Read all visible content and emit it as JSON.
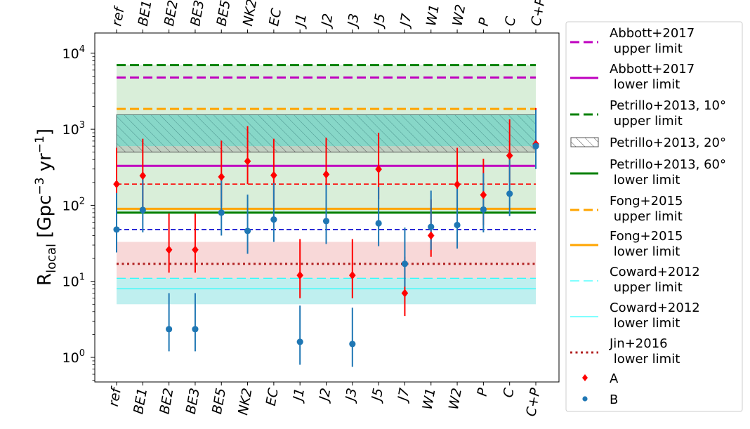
{
  "chart_data": {
    "type": "scatter",
    "title": "",
    "xlabel": "",
    "ylabel": "R",
    "ylabel_sub": "local",
    "ylabel_units_a": " [Gpc",
    "ylabel_units_exp1": "−3",
    "ylabel_units_b": " yr",
    "ylabel_units_exp2": "−1",
    "ylabel_units_c": "]",
    "yscale": "log",
    "ylim": [
      0.5,
      12000
    ],
    "yticks": [
      {
        "base": "10",
        "exp": "0",
        "value": 1
      },
      {
        "base": "10",
        "exp": "1",
        "value": 10
      },
      {
        "base": "10",
        "exp": "2",
        "value": 100
      },
      {
        "base": "10",
        "exp": "3",
        "value": 1000
      },
      {
        "base": "10",
        "exp": "4",
        "value": 10000
      }
    ],
    "categories": [
      "ref",
      "BE1",
      "BE2",
      "BE3",
      "BE5",
      "NK2",
      "EC",
      "J1",
      "J2",
      "J3",
      "J5",
      "J7",
      "W1",
      "W2",
      "P",
      "C",
      "C+P"
    ],
    "series": [
      {
        "name": "A",
        "color": "#ff0000",
        "marker": "diamond",
        "values": [
          190,
          245,
          26,
          26,
          237,
          380,
          248,
          12,
          255,
          12,
          298,
          7,
          40,
          188,
          137,
          450,
          640
        ],
        "err_low": [
          80,
          95,
          13,
          13,
          95,
          190,
          95,
          6,
          100,
          6,
          120,
          3.5,
          21,
          80,
          55,
          200,
          320
        ],
        "err_high": [
          570,
          750,
          78,
          78,
          710,
          1100,
          750,
          36,
          775,
          36,
          900,
          21,
          120,
          570,
          410,
          1350,
          1900
        ]
      },
      {
        "name": "B",
        "color": "#1f77b4",
        "marker": "circle",
        "values": [
          48,
          87,
          2.35,
          2.35,
          80,
          46,
          65,
          1.6,
          62,
          1.5,
          58,
          17,
          52,
          55,
          88,
          142,
          600
        ],
        "err_low": [
          24,
          44,
          1.2,
          1.2,
          40,
          23,
          33,
          0.8,
          31,
          0.75,
          29,
          8.5,
          26,
          27,
          44,
          72,
          300
        ],
        "err_high": [
          145,
          260,
          7,
          7,
          240,
          138,
          195,
          4.8,
          186,
          4.5,
          175,
          51,
          156,
          165,
          265,
          430,
          1800
        ]
      }
    ],
    "reference_lines": [
      {
        "label": "Abbott+2017 upper limit",
        "value": 4800,
        "color": "#bf00bf",
        "style": "dashed"
      },
      {
        "label": "Abbott+2017 lower limit",
        "value": 330,
        "color": "#bf00bf",
        "style": "solid"
      },
      {
        "label": "Petrillo+2013, 10° upper limit",
        "value": 7000,
        "color": "#008000",
        "style": "dashed"
      },
      {
        "label": "Petrillo+2013, 60° lower limit",
        "value": 80,
        "color": "#008000",
        "style": "solid"
      },
      {
        "label": "Fong+2015 upper limit",
        "value": 1850,
        "color": "#ffa500",
        "style": "dashed"
      },
      {
        "label": "Fong+2015 lower limit",
        "value": 90,
        "color": "#ffa500",
        "style": "solid"
      },
      {
        "label": "Coward+2012 upper limit",
        "value": 11,
        "color": "#00ffff",
        "style": "dashed"
      },
      {
        "label": "Coward+2012 lower limit",
        "value": 8,
        "color": "#00ffff",
        "style": "solid"
      },
      {
        "label": "Jin+2016 lower limit",
        "value": 17,
        "color": "#b22222",
        "style": "dotted"
      },
      {
        "label": "A median",
        "value": 190,
        "color": "#ff0000",
        "style": "dashed",
        "in_legend": false
      },
      {
        "label": "B median",
        "value": 48,
        "color": "#0000cd",
        "style": "dashed",
        "in_legend": false
      }
    ],
    "bands": [
      {
        "name": "Petrillo 10°–60° range",
        "low": 80,
        "high": 7000,
        "color": "#2ca02c",
        "opacity": 0.18
      },
      {
        "name": "Petrillo+2013, 20°",
        "low": 500,
        "high": 1550,
        "color": "#999999",
        "opacity": 0.35,
        "hatch": true
      },
      {
        "name": "Teal band",
        "low": 600,
        "high": 1550,
        "color": "#40e0d0",
        "opacity": 0.45
      },
      {
        "name": "Jin range",
        "low": 11,
        "high": 33,
        "color": "#d62728",
        "opacity": 0.18
      },
      {
        "name": "Coward range",
        "low": 5,
        "high": 11,
        "color": "#00c0c0",
        "opacity": 0.25
      }
    ],
    "legend": {
      "position": "right-outside",
      "entries": [
        {
          "line1": "Abbott+2017",
          "line2": " upper limit",
          "kind": "line",
          "color": "#bf00bf",
          "style": "dashed"
        },
        {
          "line1": "Abbott+2017",
          "line2": " lower limit",
          "kind": "line",
          "color": "#bf00bf",
          "style": "solid"
        },
        {
          "line1": "Petrillo+2013, 10°",
          "line2": " upper limit",
          "kind": "line",
          "color": "#008000",
          "style": "dashed"
        },
        {
          "line1": "Petrillo+2013, 20°",
          "line2": "",
          "kind": "hatch",
          "color": "#999999",
          "style": "hatch"
        },
        {
          "line1": "Petrillo+2013, 60°",
          "line2": " lower limit",
          "kind": "line",
          "color": "#008000",
          "style": "solid"
        },
        {
          "line1": "Fong+2015",
          "line2": " upper limit",
          "kind": "line",
          "color": "#ffa500",
          "style": "dashed"
        },
        {
          "line1": "Fong+2015",
          "line2": " lower limit",
          "kind": "line",
          "color": "#ffa500",
          "style": "solid"
        },
        {
          "line1": "Coward+2012",
          "line2": " upper limit",
          "kind": "line",
          "color": "#00ffff",
          "style": "dashed"
        },
        {
          "line1": "Coward+2012",
          "line2": " lower limit",
          "kind": "line",
          "color": "#00ffff",
          "style": "solid"
        },
        {
          "line1": "Jin+2016",
          "line2": " lower limit",
          "kind": "line",
          "color": "#b22222",
          "style": "dotted"
        },
        {
          "line1": "A",
          "line2": "",
          "kind": "diamond",
          "color": "#ff0000",
          "style": "marker"
        },
        {
          "line1": "B",
          "line2": "",
          "kind": "circle",
          "color": "#1f77b4",
          "style": "marker"
        }
      ]
    }
  }
}
